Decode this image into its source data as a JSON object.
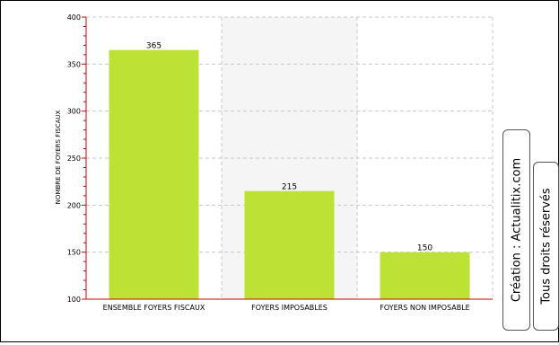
{
  "chart_data": {
    "type": "bar",
    "title": "",
    "xlabel": "",
    "ylabel": "NOMBRE DE FOYERS FISCAUX",
    "categories": [
      "ENSEMBLE FOYERS FISCAUX",
      "FOYERS IMPOSABLES",
      "FOYERS NON IMPOSABLE"
    ],
    "values": [
      365,
      215,
      150
    ],
    "data_labels": [
      "365",
      "215",
      "150"
    ],
    "ylim": [
      100,
      400
    ],
    "yticks": [
      100,
      150,
      200,
      250,
      300,
      350,
      400
    ],
    "ytick_labels": [
      "100",
      "150",
      "200",
      "250",
      "300",
      "350",
      "400"
    ],
    "grid": true,
    "bar_color": "#bde236",
    "plot_background": "#f5f5f5"
  },
  "credits": {
    "creation": "Création : Actualitix.com",
    "rights": "Tous droits réservés"
  }
}
